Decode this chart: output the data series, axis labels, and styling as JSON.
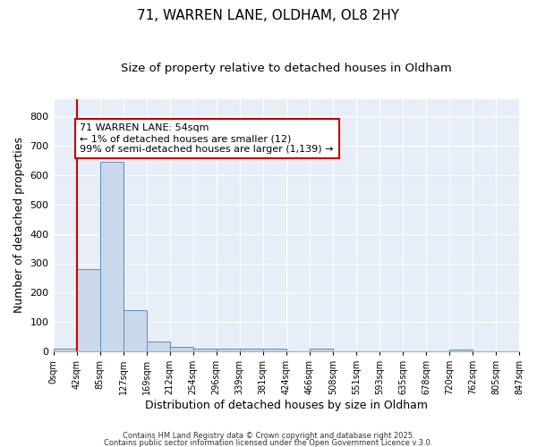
{
  "title1": "71, WARREN LANE, OLDHAM, OL8 2HY",
  "title2": "Size of property relative to detached houses in Oldham",
  "xlabel": "Distribution of detached houses by size in Oldham",
  "ylabel": "Number of detached properties",
  "bar_values": [
    8,
    280,
    645,
    140,
    35,
    16,
    10,
    8,
    8,
    10,
    0,
    8,
    0,
    0,
    0,
    0,
    0,
    6,
    0,
    0
  ],
  "bin_labels": [
    "0sqm",
    "42sqm",
    "85sqm",
    "127sqm",
    "169sqm",
    "212sqm",
    "254sqm",
    "296sqm",
    "339sqm",
    "381sqm",
    "424sqm",
    "466sqm",
    "508sqm",
    "551sqm",
    "593sqm",
    "635sqm",
    "678sqm",
    "720sqm",
    "762sqm",
    "805sqm",
    "847sqm"
  ],
  "bar_color": "#c9d9eb",
  "bar_edge_color": "#5b8db8",
  "vline_x": 1.0,
  "vline_color": "#cc0000",
  "annotation_text": "71 WARREN LANE: 54sqm\n← 1% of detached houses are smaller (12)\n99% of semi-detached houses are larger (1,139) →",
  "annotation_box_color": "#ffffff",
  "annotation_box_edge": "#cc0000",
  "ylim": [
    0,
    860
  ],
  "yticks": [
    0,
    100,
    200,
    300,
    400,
    500,
    600,
    700,
    800
  ],
  "plot_bg_color": "#e8eef8",
  "fig_bg_color": "#ffffff",
  "grid_color": "#ffffff",
  "footer1": "Contains HM Land Registry data © Crown copyright and database right 2025.",
  "footer2": "Contains public sector information licensed under the Open Government Licence v.3.0."
}
